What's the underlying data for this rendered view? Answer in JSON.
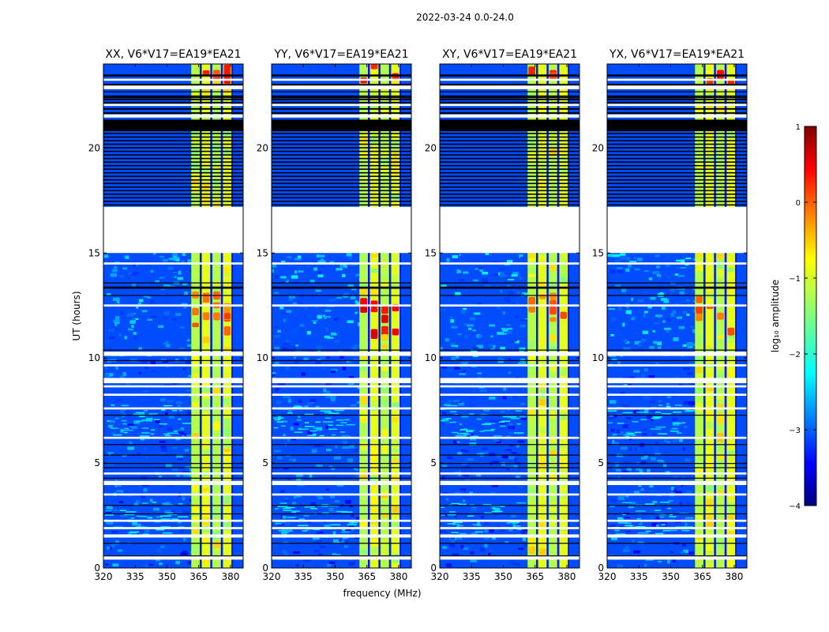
{
  "chart_data": {
    "type": "heatmap",
    "suptitle": "2022-03-24 0.0-24.0",
    "xlabel": "frequency (MHz)",
    "ylabel": "UT (hours)",
    "xlim": [
      320,
      386
    ],
    "ylim": [
      0,
      24
    ],
    "x_ticks": [
      320,
      335,
      350,
      365,
      380
    ],
    "x_tick_labels": [
      "320",
      "335",
      "350",
      "365",
      "380"
    ],
    "y_ticks": [
      0,
      5,
      10,
      15,
      20
    ],
    "y_tick_labels": [
      "0",
      "5",
      "10",
      "15",
      "20"
    ],
    "panels": [
      {
        "name": "xx",
        "title": "XX, V6*V17=EA19*EA21"
      },
      {
        "name": "yy",
        "title": "YY, V6*V17=EA19*EA21"
      },
      {
        "name": "xy",
        "title": "XY, V6*V17=EA19*EA21"
      },
      {
        "name": "yx",
        "title": "YX, V6*V17=EA19*EA21"
      }
    ],
    "colorbar": {
      "label": "log₁₀ amplitude",
      "range": [
        -4,
        1
      ],
      "ticks": [
        1,
        0,
        -1,
        -2,
        -3,
        -4
      ],
      "tick_labels": [
        "1",
        "0",
        "−1",
        "−2",
        "−3",
        "−4"
      ],
      "colormap": "jet"
    },
    "rfi_band_mhz": [
      361.5,
      382
    ],
    "bright_subbands_mhz": [
      [
        361.5,
        365.5
      ],
      [
        366.5,
        370.5
      ],
      [
        371.5,
        375.5
      ],
      [
        376.5,
        380.5
      ]
    ],
    "no_data_ut_hours": [
      15.0,
      17.2
    ],
    "flagged_black_ut_hours": [
      [
        20.8,
        21.3
      ],
      [
        13.3,
        13.4
      ]
    ]
  }
}
